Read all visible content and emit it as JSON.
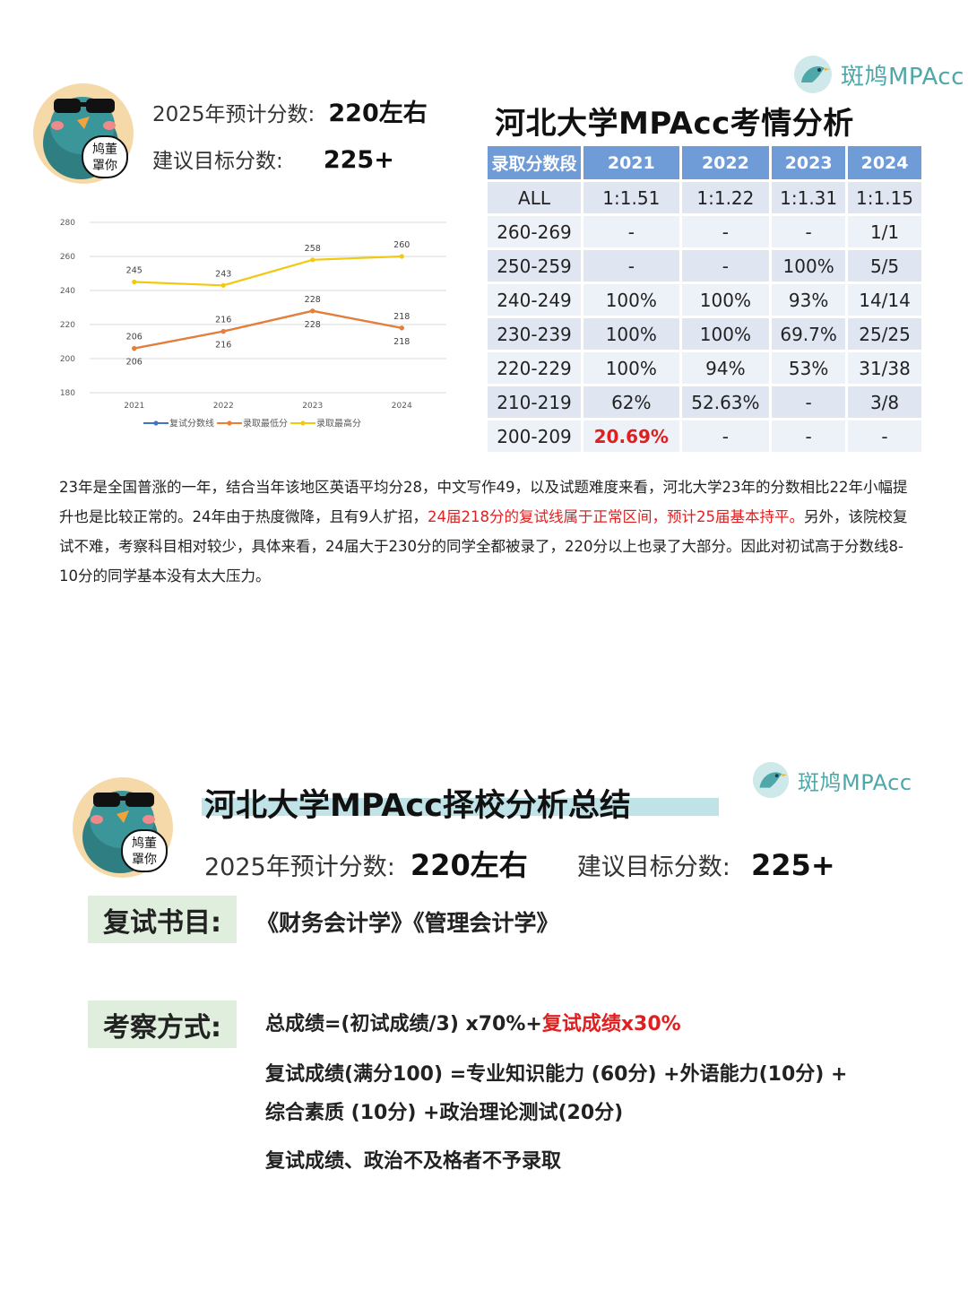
{
  "brand": {
    "name": "斑鸠MPAcc",
    "color": "#4ea7a8"
  },
  "mascot": {
    "sign_line1": "鸠董",
    "sign_line2": "罩你"
  },
  "section1": {
    "expected_label": "2025年预计分数:",
    "expected_value": "220左右",
    "target_label": "建议目标分数:",
    "target_value": "225+",
    "title": "河北大学MPAcc考情分析"
  },
  "chart_data": {
    "type": "line",
    "x": [
      "2021",
      "2022",
      "2023",
      "2024"
    ],
    "ylim": [
      180,
      280
    ],
    "yticks": [
      "180",
      "200",
      "220",
      "240",
      "260",
      "280"
    ],
    "grid": true,
    "legend_position": "bottom",
    "series": [
      {
        "name": "复试分数线",
        "values": [
          206,
          216,
          228,
          218
        ],
        "color": "#4472c4",
        "labels_below": [
          "206",
          "216",
          "228",
          "218"
        ]
      },
      {
        "name": "录取最低分",
        "values": [
          206,
          216,
          228,
          218
        ],
        "color": "#ed7d31",
        "labels": [
          "206",
          "216",
          "228",
          "218"
        ]
      },
      {
        "name": "录取最高分",
        "values": [
          245,
          243,
          258,
          260
        ],
        "color": "#f2c811",
        "labels": [
          "245",
          "243",
          "258",
          "260"
        ]
      }
    ]
  },
  "table": {
    "headers": [
      "录取分数段",
      "2021",
      "2022",
      "2023",
      "2024"
    ],
    "rows": [
      [
        "ALL",
        "1:1.51",
        "1:1.22",
        "1:1.31",
        "1:1.15"
      ],
      [
        "260-269",
        "-",
        "-",
        "-",
        "1/1"
      ],
      [
        "250-259",
        "-",
        "-",
        "100%",
        "5/5"
      ],
      [
        "240-249",
        "100%",
        "100%",
        "93%",
        "14/14"
      ],
      [
        "230-239",
        "100%",
        "100%",
        "69.7%",
        "25/25"
      ],
      [
        "220-229",
        "100%",
        "94%",
        "53%",
        "31/38"
      ],
      [
        "210-219",
        "62%",
        "52.63%",
        "-",
        "3/8"
      ],
      [
        "200-209",
        "20.69%",
        "-",
        "-",
        "-"
      ]
    ],
    "highlight_color": "#e02020"
  },
  "analysis": {
    "p1": "23年是全国普涨的一年，结合当年该地区英语平均分28，中文写作49，以及试题难度来看，河北大学23年的分数相比22年小幅提升也是比较正常的。24年由于热度微降，且有9人扩招，",
    "p_red": "24届218分的复试线属于正常区间，预计25届基本持平。",
    "p2": "另外，该院校复试不难，考察科目相对较少，具体来看，24届大于230分的同学全都被录了，220分以上也录了大部分。因此对初试高于分数线8-10分的同学基本没有太大压力。"
  },
  "section2": {
    "title": "河北大学MPAcc择校分析总结",
    "expected_label": "2025年预计分数:",
    "expected_value": "220左右",
    "target_label": "建议目标分数:",
    "target_value": "225+",
    "books_label": "复试书目:",
    "books": "《财务会计学》《管理会计学》",
    "method_label": "考察方式:",
    "formula_prefix": "总成绩=(初试成绩/3) x70%+",
    "formula_red": "复试成绩x30%",
    "detail_line1": "复试成绩(满分100) =专业知识能力 (60分) +外语能力(10分) +",
    "detail_line2": "综合素质 (10分) +政治理论测试(20分)",
    "rule": "复试成绩、政治不及格者不予录取"
  }
}
